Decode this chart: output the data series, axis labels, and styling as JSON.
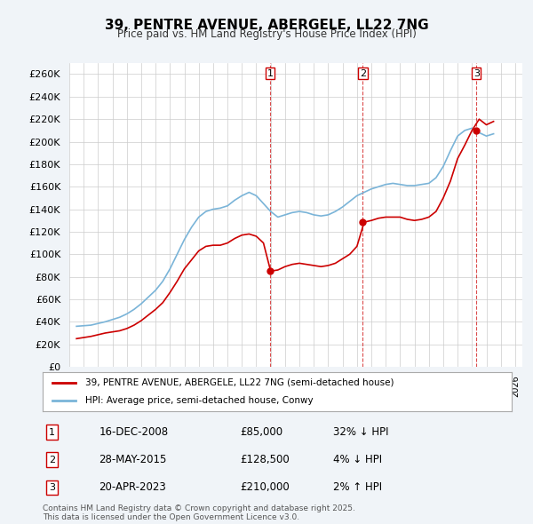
{
  "title": "39, PENTRE AVENUE, ABERGELE, LL22 7NG",
  "subtitle": "Price paid vs. HM Land Registry's House Price Index (HPI)",
  "ylabel": "",
  "ylim": [
    0,
    270000
  ],
  "yticks": [
    0,
    20000,
    40000,
    60000,
    80000,
    100000,
    120000,
    140000,
    160000,
    180000,
    200000,
    220000,
    240000,
    260000
  ],
  "xlim_start": 1995.0,
  "xlim_end": 2026.5,
  "background_color": "#f0f4f8",
  "plot_bg_color": "#ffffff",
  "legend_label_red": "39, PENTRE AVENUE, ABERGELE, LL22 7NG (semi-detached house)",
  "legend_label_blue": "HPI: Average price, semi-detached house, Conwy",
  "footer": "Contains HM Land Registry data © Crown copyright and database right 2025.\nThis data is licensed under the Open Government Licence v3.0.",
  "sale_markers": [
    {
      "label": "1",
      "date_x": 2008.96,
      "price": 85000,
      "date_str": "16-DEC-2008",
      "price_str": "£85,000",
      "hpi_str": "32% ↓ HPI"
    },
    {
      "label": "2",
      "date_x": 2015.41,
      "price": 128500,
      "date_str": "28-MAY-2015",
      "price_str": "£128,500",
      "hpi_str": "4% ↓ HPI"
    },
    {
      "label": "3",
      "date_x": 2023.3,
      "price": 210000,
      "date_str": "20-APR-2023",
      "price_str": "£210,000",
      "hpi_str": "2% ↑ HPI"
    }
  ],
  "hpi_line_color": "#7ab4d8",
  "price_line_color": "#cc0000",
  "vline_color": "#cc0000",
  "hpi_data_x": [
    1995.5,
    1996.0,
    1996.5,
    1997.0,
    1997.5,
    1998.0,
    1998.5,
    1999.0,
    1999.5,
    2000.0,
    2000.5,
    2001.0,
    2001.5,
    2002.0,
    2002.5,
    2003.0,
    2003.5,
    2004.0,
    2004.5,
    2005.0,
    2005.5,
    2006.0,
    2006.5,
    2007.0,
    2007.5,
    2008.0,
    2008.5,
    2009.0,
    2009.5,
    2010.0,
    2010.5,
    2011.0,
    2011.5,
    2012.0,
    2012.5,
    2013.0,
    2013.5,
    2014.0,
    2014.5,
    2015.0,
    2015.5,
    2016.0,
    2016.5,
    2017.0,
    2017.5,
    2018.0,
    2018.5,
    2019.0,
    2019.5,
    2020.0,
    2020.5,
    2021.0,
    2021.5,
    2022.0,
    2022.5,
    2023.0,
    2023.5,
    2024.0,
    2024.5
  ],
  "hpi_data_y": [
    36000,
    36500,
    37000,
    38500,
    40000,
    42000,
    44000,
    47000,
    51000,
    56000,
    62000,
    68000,
    76000,
    87000,
    100000,
    113000,
    124000,
    133000,
    138000,
    140000,
    141000,
    143000,
    148000,
    152000,
    155000,
    152000,
    145000,
    138000,
    133000,
    135000,
    137000,
    138000,
    137000,
    135000,
    134000,
    135000,
    138000,
    142000,
    147000,
    152000,
    155000,
    158000,
    160000,
    162000,
    163000,
    162000,
    161000,
    161000,
    162000,
    163000,
    168000,
    178000,
    192000,
    205000,
    210000,
    212000,
    208000,
    205000,
    207000
  ],
  "price_data_x": [
    1995.5,
    1996.0,
    1996.5,
    1997.0,
    1997.5,
    1998.0,
    1998.5,
    1999.0,
    1999.5,
    2000.0,
    2000.5,
    2001.0,
    2001.5,
    2002.0,
    2002.5,
    2003.0,
    2003.5,
    2004.0,
    2004.5,
    2005.0,
    2005.5,
    2006.0,
    2006.5,
    2007.0,
    2007.5,
    2008.0,
    2008.5,
    2009.0,
    2009.5,
    2010.0,
    2010.5,
    2011.0,
    2011.5,
    2012.0,
    2012.5,
    2013.0,
    2013.5,
    2014.0,
    2014.5,
    2015.0,
    2015.5,
    2016.0,
    2016.5,
    2017.0,
    2017.5,
    2018.0,
    2018.5,
    2019.0,
    2019.5,
    2020.0,
    2020.5,
    2021.0,
    2021.5,
    2022.0,
    2022.5,
    2023.0,
    2023.5,
    2024.0,
    2024.5
  ],
  "price_data_y": [
    25000,
    26000,
    27000,
    28500,
    30000,
    31000,
    32000,
    34000,
    37000,
    41000,
    46000,
    51000,
    57000,
    66000,
    76000,
    87000,
    95000,
    103000,
    107000,
    108000,
    108000,
    110000,
    114000,
    117000,
    118000,
    116000,
    110000,
    85000,
    86000,
    89000,
    91000,
    92000,
    91000,
    90000,
    89000,
    90000,
    92000,
    96000,
    100000,
    107000,
    128500,
    130000,
    132000,
    133000,
    133000,
    133000,
    131000,
    130000,
    131000,
    133000,
    138000,
    150000,
    165000,
    185000,
    197000,
    210000,
    220000,
    215000,
    218000
  ]
}
